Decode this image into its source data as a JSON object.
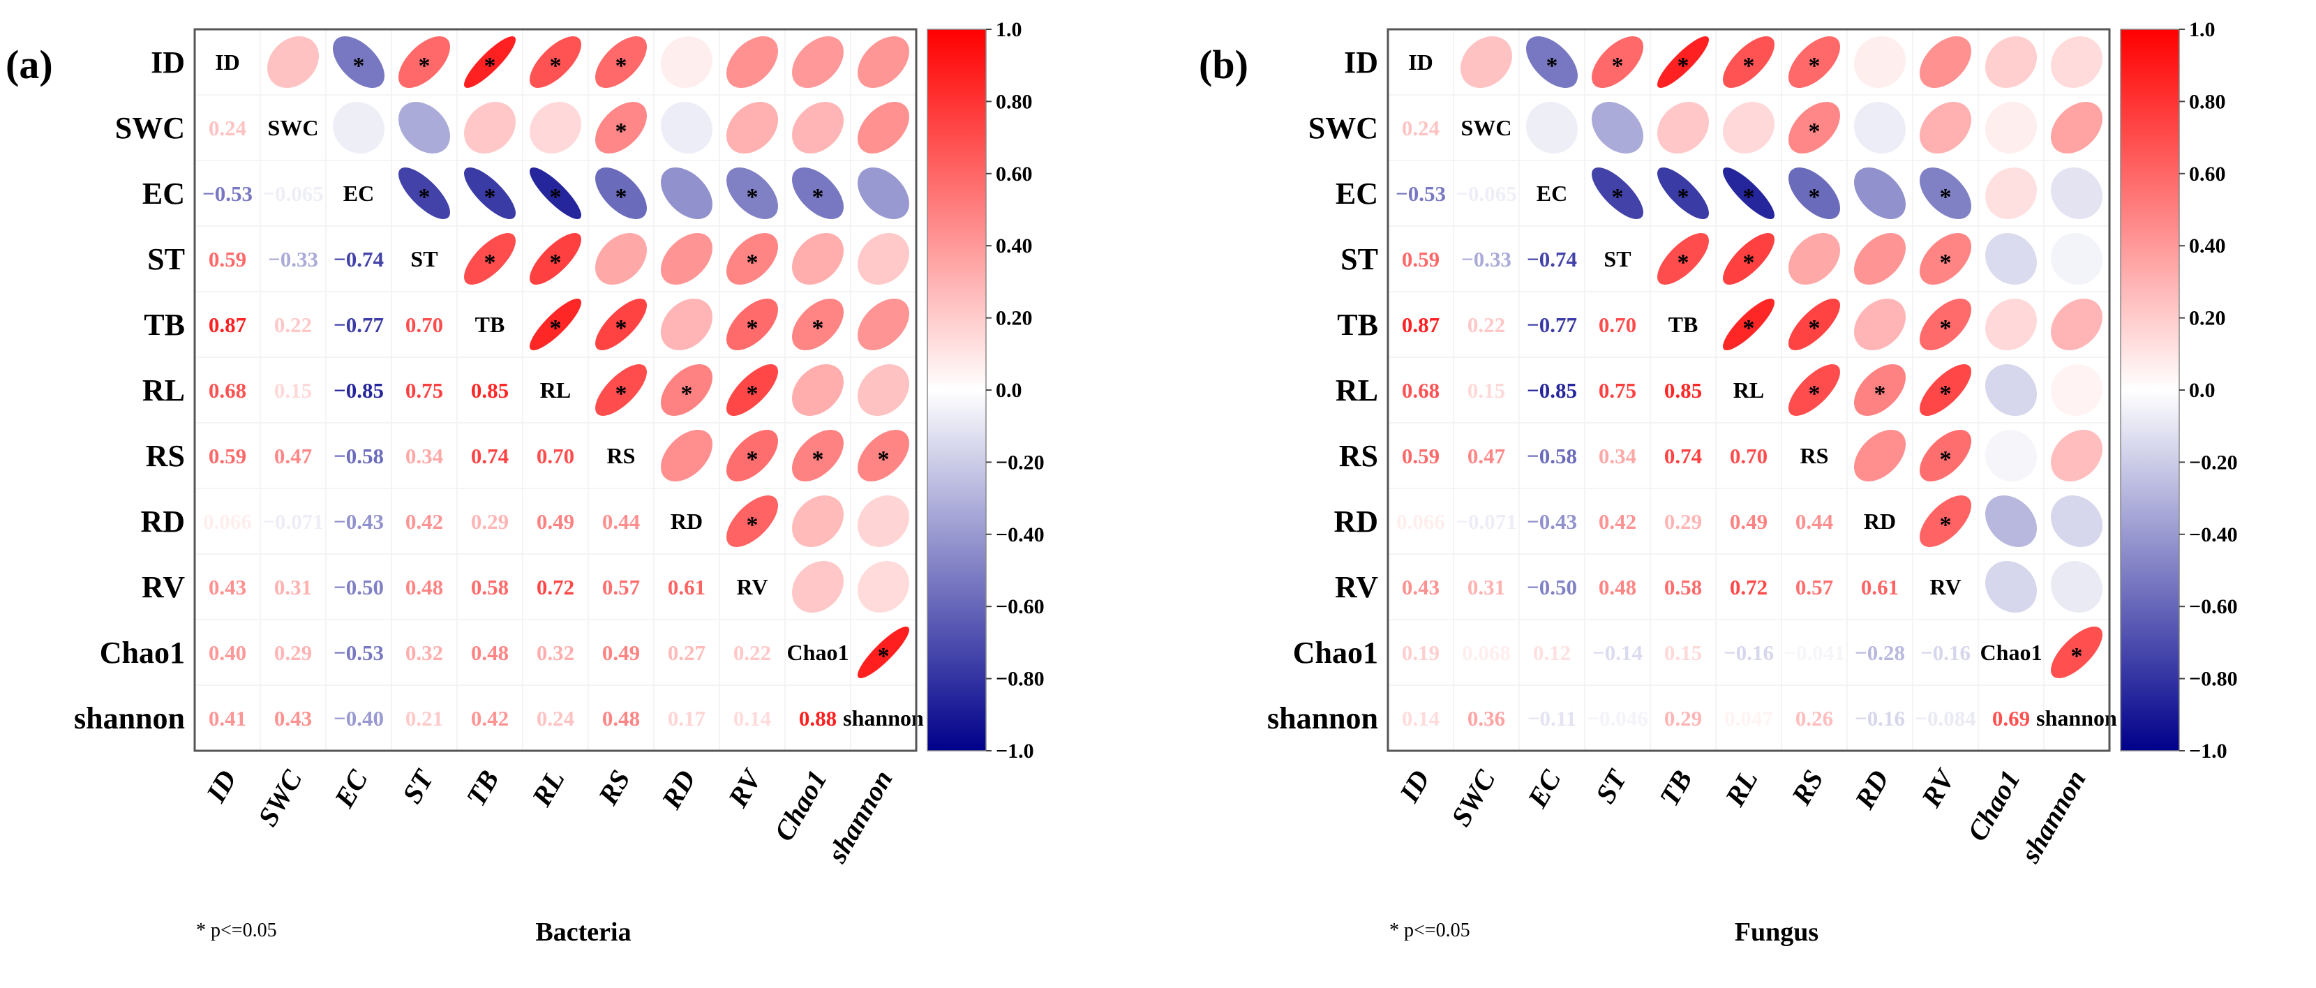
{
  "chart_data": [
    {
      "type": "heatmap",
      "panel_label": "(a)",
      "title": "Bacteria",
      "note": "* p<=0.05",
      "variables": [
        "ID",
        "SWC",
        "EC",
        "ST",
        "TB",
        "RL",
        "RS",
        "RD",
        "RV",
        "Chao1",
        "shannon"
      ],
      "lower_triangle": [
        [],
        [
          0.24
        ],
        [
          -0.53,
          -0.065
        ],
        [
          0.59,
          -0.33,
          -0.74
        ],
        [
          0.87,
          0.22,
          -0.77,
          0.7
        ],
        [
          0.68,
          0.15,
          -0.85,
          0.75,
          0.85
        ],
        [
          0.59,
          0.47,
          -0.58,
          0.34,
          0.74,
          0.7
        ],
        [
          0.066,
          -0.071,
          -0.43,
          0.42,
          0.29,
          0.49,
          0.44
        ],
        [
          0.43,
          0.31,
          -0.5,
          0.48,
          0.58,
          0.72,
          0.57,
          0.61
        ],
        [
          0.4,
          0.29,
          -0.53,
          0.32,
          0.48,
          0.32,
          0.49,
          0.27,
          0.22
        ],
        [
          0.41,
          0.43,
          -0.4,
          0.21,
          0.42,
          0.24,
          0.48,
          0.17,
          0.14,
          0.88
        ]
      ],
      "significant": [
        [
          "ID",
          "EC"
        ],
        [
          "ID",
          "ST"
        ],
        [
          "ID",
          "TB"
        ],
        [
          "ID",
          "RL"
        ],
        [
          "ID",
          "RS"
        ],
        [
          "SWC",
          "RS"
        ],
        [
          "EC",
          "ST"
        ],
        [
          "EC",
          "TB"
        ],
        [
          "EC",
          "RL"
        ],
        [
          "EC",
          "RS"
        ],
        [
          "EC",
          "RV"
        ],
        [
          "EC",
          "Chao1"
        ],
        [
          "ST",
          "TB"
        ],
        [
          "ST",
          "RL"
        ],
        [
          "ST",
          "RV"
        ],
        [
          "TB",
          "RL"
        ],
        [
          "TB",
          "RS"
        ],
        [
          "TB",
          "RV"
        ],
        [
          "TB",
          "Chao1"
        ],
        [
          "RL",
          "RS"
        ],
        [
          "RL",
          "RD"
        ],
        [
          "RL",
          "RV"
        ],
        [
          "RS",
          "RV"
        ],
        [
          "RS",
          "Chao1"
        ],
        [
          "RS",
          "shannon"
        ],
        [
          "RD",
          "RV"
        ],
        [
          "Chao1",
          "shannon"
        ]
      ],
      "colorbar": {
        "range": [
          -1,
          1
        ],
        "ticks": [
          "1.0",
          "0.80",
          "0.60",
          "0.40",
          "0.20",
          "0.0",
          "-0.20",
          "-0.40",
          "-0.60",
          "-0.80",
          "-1.0"
        ],
        "low_color": "#00008B",
        "mid_color": "#FFFFFF",
        "high_color": "#FF0000"
      }
    },
    {
      "type": "heatmap",
      "panel_label": "(b)",
      "title": "Fungus",
      "note": "* p<=0.05",
      "variables": [
        "ID",
        "SWC",
        "EC",
        "ST",
        "TB",
        "RL",
        "RS",
        "RD",
        "RV",
        "Chao1",
        "shannon"
      ],
      "lower_triangle": [
        [],
        [
          0.24
        ],
        [
          -0.53,
          -0.065
        ],
        [
          0.59,
          -0.33,
          -0.74
        ],
        [
          0.87,
          0.22,
          -0.77,
          0.7
        ],
        [
          0.68,
          0.15,
          -0.85,
          0.75,
          0.85
        ],
        [
          0.59,
          0.47,
          -0.58,
          0.34,
          0.74,
          0.7
        ],
        [
          0.066,
          -0.071,
          -0.43,
          0.42,
          0.29,
          0.49,
          0.44
        ],
        [
          0.43,
          0.31,
          -0.5,
          0.48,
          0.58,
          0.72,
          0.57,
          0.61
        ],
        [
          0.19,
          0.068,
          0.12,
          -0.14,
          0.15,
          -0.16,
          -0.041,
          -0.28,
          -0.16
        ],
        [
          0.14,
          0.36,
          -0.11,
          -0.046,
          0.29,
          0.047,
          0.26,
          -0.16,
          -0.084,
          0.69
        ]
      ],
      "significant": [
        [
          "ID",
          "EC"
        ],
        [
          "ID",
          "ST"
        ],
        [
          "ID",
          "TB"
        ],
        [
          "ID",
          "RL"
        ],
        [
          "ID",
          "RS"
        ],
        [
          "SWC",
          "RS"
        ],
        [
          "EC",
          "ST"
        ],
        [
          "EC",
          "TB"
        ],
        [
          "EC",
          "RL"
        ],
        [
          "EC",
          "RS"
        ],
        [
          "EC",
          "RV"
        ],
        [
          "ST",
          "TB"
        ],
        [
          "ST",
          "RL"
        ],
        [
          "ST",
          "RV"
        ],
        [
          "TB",
          "RL"
        ],
        [
          "TB",
          "RS"
        ],
        [
          "TB",
          "RV"
        ],
        [
          "RL",
          "RS"
        ],
        [
          "RL",
          "RD"
        ],
        [
          "RL",
          "RV"
        ],
        [
          "RS",
          "RV"
        ],
        [
          "RD",
          "RV"
        ],
        [
          "Chao1",
          "shannon"
        ]
      ],
      "colorbar": {
        "range": [
          -1,
          1
        ],
        "ticks": [
          "1.0",
          "0.80",
          "0.60",
          "0.40",
          "0.20",
          "0.0",
          "-0.20",
          "-0.40",
          "-0.60",
          "-0.80",
          "-1.0"
        ],
        "low_color": "#00008B",
        "mid_color": "#FFFFFF",
        "high_color": "#FF0000"
      }
    }
  ]
}
